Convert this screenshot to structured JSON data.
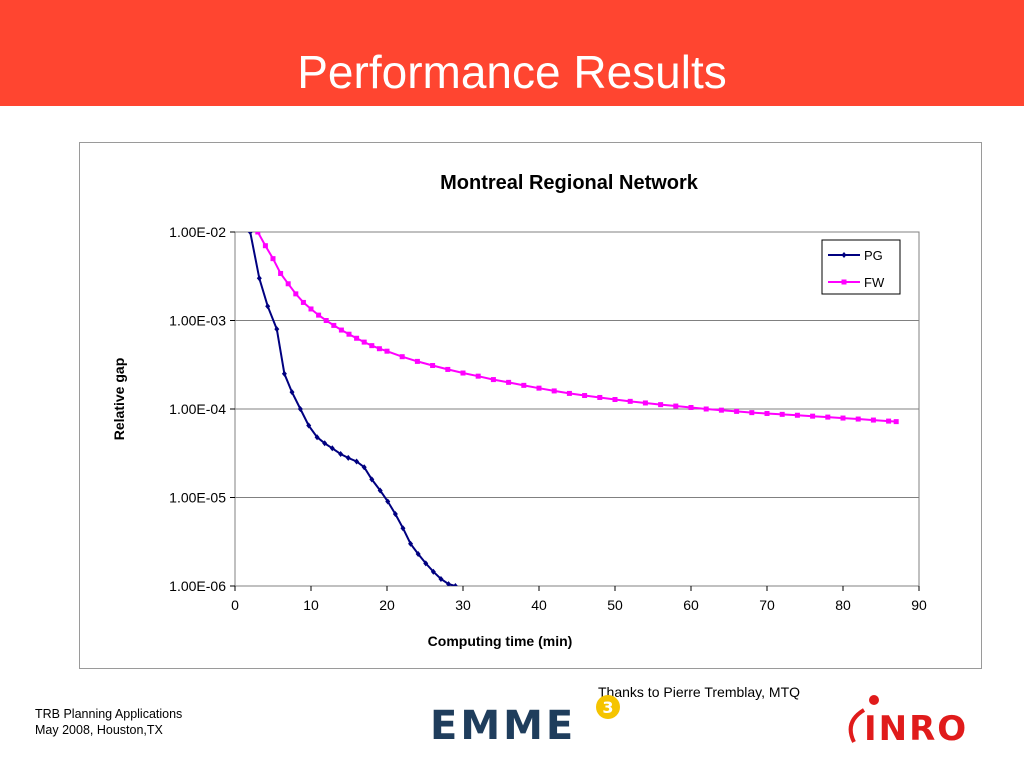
{
  "slide": {
    "title": "Performance Results",
    "credit": "Thanks to Pierre Tremblay, MTQ",
    "footer_line1": "TRB Planning Applications",
    "footer_line2": "May 2008, Houston,TX",
    "header_color": "#ff4530",
    "logos": {
      "emme": {
        "text": "EMME",
        "badge": "3",
        "text_color": "#1f3d5c",
        "badge_color": "#f5c400"
      },
      "inro": {
        "text": "INRO",
        "color": "#e01b1b"
      }
    }
  },
  "chart_data": {
    "type": "line",
    "title": "Montreal Regional Network",
    "xlabel": "Computing time (min)",
    "ylabel": "Relative gap",
    "xlim": [
      0,
      90
    ],
    "xticks": [
      "0",
      "10",
      "20",
      "30",
      "40",
      "50",
      "60",
      "70",
      "80",
      "90"
    ],
    "ylim": [
      1e-06,
      0.01
    ],
    "yscale": "log",
    "yticks": [
      "1.00E-02",
      "1.00E-03",
      "1.00E-04",
      "1.00E-05",
      "1.00E-06"
    ],
    "grid": "horizontal",
    "legend": "top-right",
    "series": [
      {
        "name": "PG",
        "color": "#000080",
        "marker": "diamond",
        "x": [
          2.0,
          3.2,
          4.3,
          5.5,
          6.5,
          7.5,
          8.6,
          9.7,
          10.8,
          11.8,
          12.8,
          13.9,
          14.9,
          16.0,
          17.0,
          18.0,
          19.1,
          20.1,
          21.1,
          22.1,
          23.1,
          24.1,
          25.1,
          26.1,
          27.1,
          28.1,
          29.0
        ],
        "y": [
          0.01,
          0.003,
          0.00145,
          0.0008,
          0.00025,
          0.000155,
          0.0001,
          6.5e-05,
          4.8e-05,
          4.1e-05,
          3.6e-05,
          3.1e-05,
          2.8e-05,
          2.55e-05,
          2.2e-05,
          1.6e-05,
          1.2e-05,
          9e-06,
          6.5e-06,
          4.5e-06,
          3e-06,
          2.3e-06,
          1.8e-06,
          1.45e-06,
          1.2e-06,
          1.05e-06,
          1e-06
        ]
      },
      {
        "name": "FW",
        "color": "#ff00ff",
        "marker": "square",
        "x": [
          3,
          4,
          5,
          6,
          7,
          8,
          9,
          10,
          11,
          12,
          13,
          14,
          15,
          16,
          17,
          18,
          19,
          20,
          22,
          24,
          26,
          28,
          30,
          32,
          34,
          36,
          38,
          40,
          42,
          44,
          46,
          48,
          50,
          52,
          54,
          56,
          58,
          60,
          62,
          64,
          66,
          68,
          70,
          72,
          74,
          76,
          78,
          80,
          82,
          84,
          86,
          87
        ],
        "y": [
          0.01,
          0.007,
          0.005,
          0.0034,
          0.0026,
          0.002,
          0.0016,
          0.00135,
          0.00115,
          0.001,
          0.00088,
          0.00078,
          0.0007,
          0.00063,
          0.00057,
          0.00052,
          0.00048,
          0.00045,
          0.00039,
          0.000345,
          0.00031,
          0.00028,
          0.000255,
          0.000235,
          0.000215,
          0.0002,
          0.000185,
          0.000172,
          0.00016,
          0.00015,
          0.000142,
          0.000135,
          0.000128,
          0.000122,
          0.000117,
          0.000112,
          0.000108,
          0.000104,
          0.0001,
          9.7e-05,
          9.4e-05,
          9.1e-05,
          8.9e-05,
          8.7e-05,
          8.5e-05,
          8.3e-05,
          8.1e-05,
          7.9e-05,
          7.7e-05,
          7.5e-05,
          7.3e-05,
          7.2e-05
        ]
      }
    ]
  }
}
